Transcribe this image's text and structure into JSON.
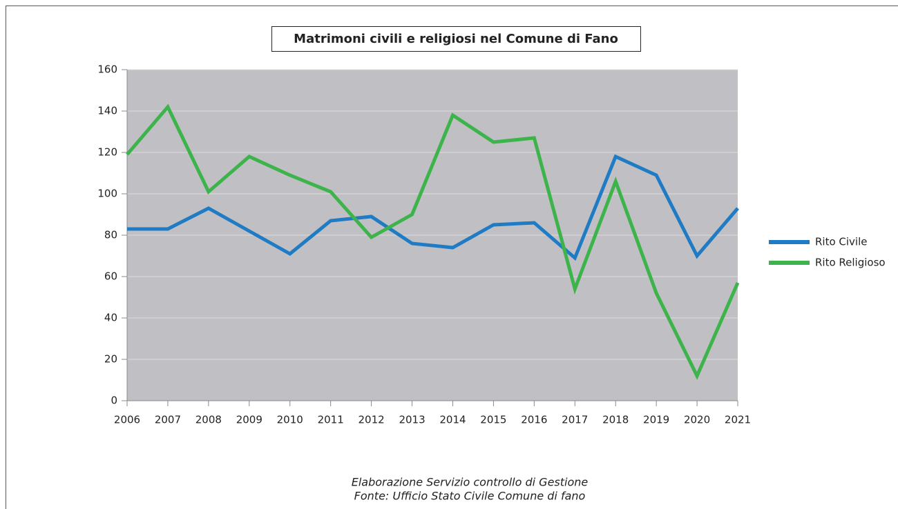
{
  "chart_data": {
    "type": "line",
    "title": "Matrimoni civili e religiosi nel Comune di Fano",
    "categories": [
      "2006",
      "2007",
      "2008",
      "2009",
      "2010",
      "2011",
      "2012",
      "2013",
      "2014",
      "2015",
      "2016",
      "2017",
      "2018",
      "2019",
      "2020",
      "2021"
    ],
    "series": [
      {
        "name": "Rito Civile",
        "color": "#1f7cc4",
        "values": [
          83,
          83,
          93,
          82,
          71,
          87,
          89,
          76,
          74,
          85,
          86,
          69,
          118,
          109,
          70,
          93
        ]
      },
      {
        "name": "Rito Religioso",
        "color": "#3db44b",
        "values": [
          119,
          142,
          101,
          118,
          109,
          101,
          79,
          90,
          138,
          125,
          127,
          54,
          106,
          52,
          12,
          57
        ]
      }
    ],
    "ylim": [
      0,
      160
    ],
    "yticks": [
      0,
      20,
      40,
      60,
      80,
      100,
      120,
      140,
      160
    ],
    "grid": true,
    "legend": "right",
    "footnotes": [
      "Elaborazione Servizio controllo di Gestione",
      "Fonte: Ufficio Stato Civile Comune di fano"
    ]
  }
}
